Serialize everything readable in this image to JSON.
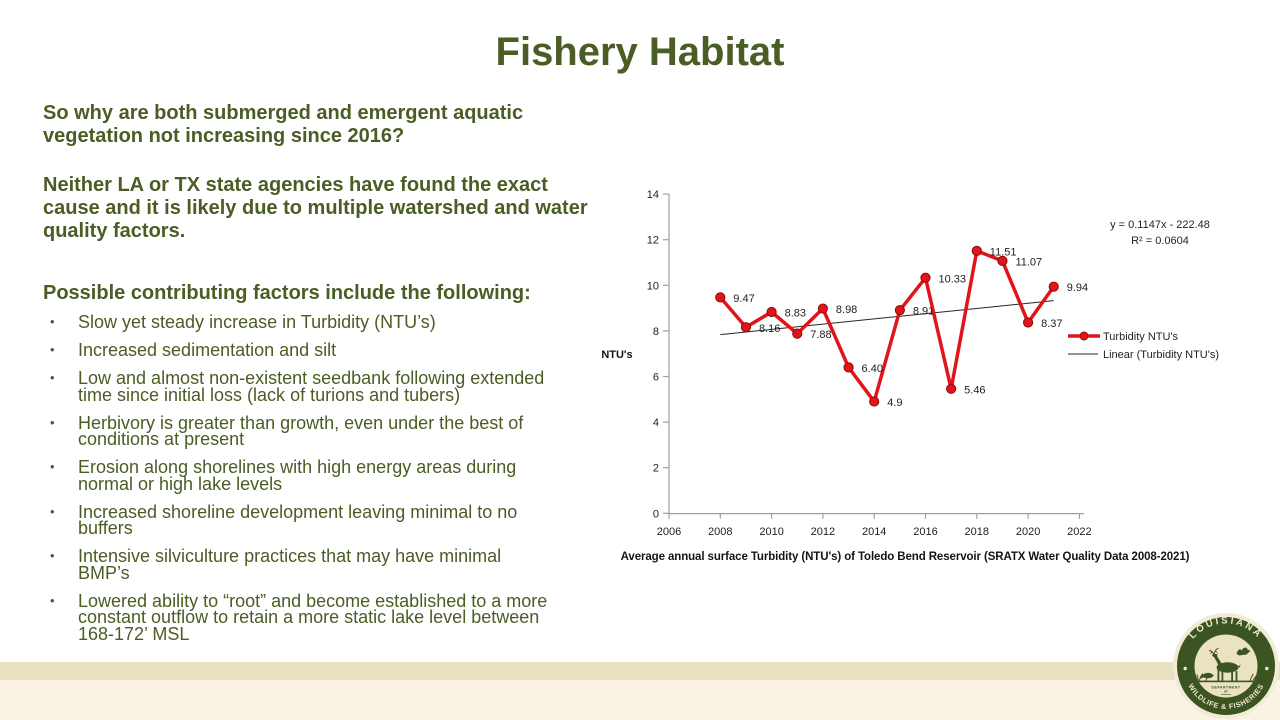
{
  "slide": {
    "title": "Fishery Habitat",
    "paragraphs": [
      "So why are both submerged and emergent aquatic vegetation not increasing since 2016?",
      "Neither LA or TX state agencies have found the exact cause and it is likely due to multiple watershed and water quality factors."
    ],
    "factors_heading": "Possible contributing factors include the following:",
    "bullets": [
      "Slow yet steady increase in Turbidity (NTU’s)",
      "Increased sedimentation and silt",
      "Low and almost non-existent seedbank following extended time since initial loss (lack of turions and tubers)",
      "Herbivory is greater than growth, even under the best of conditions at present",
      "Erosion along shorelines with high energy areas during normal or high lake levels",
      "Increased shoreline development leaving minimal to no buffers",
      "Intensive silviculture practices that may have minimal BMP’s",
      "Lowered ability to “root” and become established to a more constant outflow to retain a more static lake level between 168-172’ MSL"
    ],
    "text_color": "#4a5d25"
  },
  "chart_data": {
    "type": "line",
    "title": "Average annual surface Turbidity (NTU's) of Toledo Bend Reservoir (SRATX Water Quality Data 2008-2021)",
    "ylabel": "NTU's",
    "years": [
      2008,
      2009,
      2010,
      2011,
      2012,
      2013,
      2014,
      2015,
      2016,
      2017,
      2018,
      2019,
      2020,
      2021
    ],
    "values": [
      9.47,
      8.16,
      8.83,
      7.88,
      8.98,
      6.4,
      4.9,
      8.91,
      10.33,
      5.46,
      11.51,
      11.07,
      8.37,
      9.94
    ],
    "point_labels": [
      "9.47",
      "8.16",
      "8.83",
      "7.88",
      "8.98",
      "6.40",
      "4.9",
      "8.91",
      "10.33",
      "5.46",
      "11.51",
      "11.07",
      "8.37",
      "9.94"
    ],
    "series_name": "Turbidity NTU's",
    "trend": {
      "label": "Linear (Turbidity NTU's)",
      "equation": "y = 0.1147x - 222.48",
      "r2": "R² = 0.0604",
      "slope": 0.1147,
      "intercept": -222.48
    },
    "xlim": [
      2006,
      2022
    ],
    "ylim": [
      0,
      14
    ],
    "x_ticks": [
      2006,
      2008,
      2010,
      2012,
      2014,
      2016,
      2018,
      2020,
      2022
    ],
    "y_ticks": [
      0,
      2,
      4,
      6,
      8,
      10,
      12,
      14
    ],
    "legend_position": "right",
    "grid": false,
    "colors": {
      "line": "#e1141a",
      "marker_edge": "#8e0b0b",
      "trend": "#262626",
      "axis": "#a0a0a0",
      "text": "#1f1f1f"
    }
  },
  "logo": {
    "top_text": "LOUISIANA",
    "bottom_text": "WILDLIFE & FISHERIES",
    "dept_line1": "DEPARTMENT",
    "dept_line2": "OF",
    "ring_color": "#3b5422",
    "inner_color": "#ebe2c2"
  }
}
